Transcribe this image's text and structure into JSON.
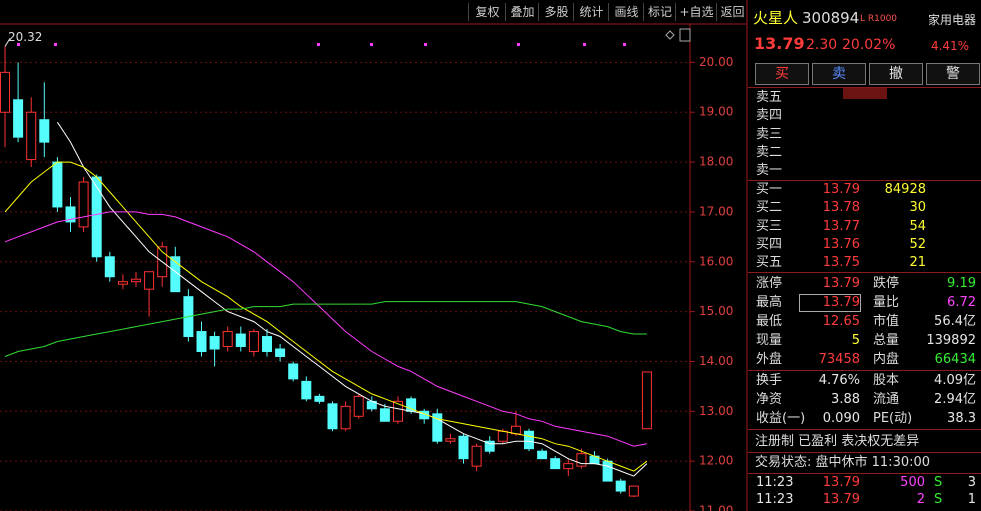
{
  "toolbar": [
    "复权",
    "叠加",
    "多股",
    "统计",
    "画线",
    "标记",
    "+自选",
    "返回"
  ],
  "chart_data": {
    "type": "candlestick",
    "ylim": [
      11,
      20.75
    ],
    "yticks": [
      {
        "value": 11,
        "label": "11.00"
      },
      {
        "value": 12,
        "label": "12.00"
      },
      {
        "value": 13,
        "label": "13.00"
      },
      {
        "value": 14,
        "label": "14.00"
      },
      {
        "value": 15,
        "label": "15.00"
      },
      {
        "value": 16,
        "label": "16.00"
      },
      {
        "value": 17,
        "label": "17.00"
      },
      {
        "value": 18,
        "label": "18.00"
      },
      {
        "value": 19,
        "label": "19.00"
      },
      {
        "value": 20,
        "label": "20.00"
      }
    ],
    "grid": true,
    "up_color": "#ff3232",
    "down_color": "#54fcfc",
    "open": [
      19.0,
      19.25,
      18.05,
      18.85,
      18.0,
      17.1,
      16.7,
      17.7,
      16.1,
      15.55,
      15.6,
      15.45,
      15.7,
      16.1,
      15.3,
      14.6,
      14.5,
      14.3,
      14.55,
      14.2,
      14.5,
      14.25,
      13.95,
      13.6,
      13.3,
      13.15,
      12.65,
      12.9,
      13.2,
      13.05,
      12.8,
      13.25,
      13.0,
      12.95,
      12.4,
      12.5,
      11.9,
      12.4,
      12.4,
      12.55,
      12.6,
      12.2,
      12.05,
      11.85,
      11.9,
      12.1,
      12.0,
      11.6,
      11.3,
      12.65
    ],
    "high": [
      20.32,
      20.0,
      19.3,
      19.6,
      18.1,
      17.3,
      17.7,
      17.75,
      16.2,
      15.75,
      15.8,
      15.8,
      16.4,
      16.3,
      15.45,
      14.8,
      14.6,
      14.7,
      14.7,
      14.65,
      14.65,
      14.35,
      14.0,
      13.7,
      13.35,
      13.2,
      13.2,
      13.35,
      13.3,
      13.15,
      13.3,
      13.3,
      13.05,
      13.05,
      12.55,
      12.55,
      12.35,
      12.5,
      12.65,
      13.0,
      12.65,
      12.25,
      12.1,
      12.05,
      12.25,
      12.2,
      12.05,
      11.65,
      11.5,
      13.79
    ],
    "low": [
      18.3,
      18.4,
      17.9,
      18.1,
      17.0,
      16.6,
      16.6,
      16.0,
      15.6,
      15.45,
      15.5,
      14.9,
      15.5,
      15.4,
      14.4,
      14.1,
      13.9,
      14.2,
      14.2,
      14.1,
      14.1,
      14.0,
      13.6,
      13.2,
      13.15,
      12.6,
      12.6,
      12.85,
      13.0,
      12.8,
      12.75,
      12.95,
      12.75,
      12.35,
      12.35,
      11.95,
      11.8,
      12.15,
      12.35,
      12.5,
      12.2,
      12.05,
      11.85,
      11.7,
      11.85,
      11.95,
      11.6,
      11.35,
      11.28,
      12.65
    ],
    "close": [
      19.8,
      18.5,
      19.0,
      18.4,
      17.1,
      16.8,
      17.6,
      16.1,
      15.7,
      15.6,
      15.65,
      15.8,
      16.3,
      15.4,
      14.5,
      14.2,
      14.25,
      14.6,
      14.3,
      14.6,
      14.2,
      14.1,
      13.65,
      13.25,
      13.2,
      12.65,
      13.1,
      13.3,
      13.05,
      12.8,
      13.2,
      13.0,
      12.85,
      12.4,
      12.45,
      12.05,
      12.3,
      12.2,
      12.6,
      12.7,
      12.25,
      12.05,
      11.85,
      11.95,
      12.15,
      11.95,
      11.6,
      11.4,
      11.5,
      13.79
    ],
    "series": [
      {
        "color": "#ffffff",
        "values": [
          null,
          null,
          null,
          null,
          18.8,
          18.4,
          17.9,
          17.5,
          17.1,
          16.8,
          16.5,
          16.2,
          16.0,
          15.8,
          15.6,
          15.4,
          15.2,
          15.0,
          14.9,
          14.8,
          14.6,
          14.5,
          14.3,
          14.1,
          13.9,
          13.7,
          13.5,
          13.35,
          13.2,
          13.1,
          13.05,
          13.0,
          12.95,
          12.85,
          12.7,
          12.55,
          12.45,
          12.35,
          12.35,
          12.4,
          12.4,
          12.35,
          12.2,
          12.05,
          11.95,
          11.95,
          11.9,
          11.8,
          11.7,
          11.95
        ]
      },
      {
        "color": "#ffff00",
        "values": [
          17.0,
          17.3,
          17.6,
          17.8,
          18.0,
          18.0,
          17.9,
          17.7,
          17.4,
          17.1,
          16.8,
          16.5,
          16.2,
          16.0,
          15.8,
          15.6,
          15.45,
          15.3,
          15.1,
          14.95,
          14.8,
          14.6,
          14.4,
          14.2,
          14.0,
          13.8,
          13.65,
          13.5,
          13.35,
          13.25,
          13.15,
          13.05,
          12.95,
          12.85,
          12.8,
          12.75,
          12.7,
          12.65,
          12.6,
          12.55,
          12.5,
          12.45,
          12.35,
          12.3,
          12.2,
          12.1,
          12.0,
          11.9,
          11.8,
          12.0
        ]
      },
      {
        "color": "#ff3cff",
        "values": [
          16.4,
          16.5,
          16.6,
          16.7,
          16.8,
          16.85,
          16.9,
          16.95,
          17.0,
          17.0,
          17.0,
          16.95,
          16.95,
          16.9,
          16.8,
          16.7,
          16.6,
          16.5,
          16.35,
          16.2,
          16.0,
          15.8,
          15.6,
          15.35,
          15.1,
          14.85,
          14.6,
          14.4,
          14.2,
          14.05,
          13.9,
          13.8,
          13.65,
          13.5,
          13.4,
          13.3,
          13.2,
          13.1,
          13.0,
          12.95,
          12.85,
          12.8,
          12.7,
          12.65,
          12.6,
          12.55,
          12.5,
          12.4,
          12.3,
          12.35
        ]
      },
      {
        "color": "#33dd33",
        "values": [
          14.1,
          14.2,
          14.25,
          14.3,
          14.4,
          14.45,
          14.5,
          14.55,
          14.6,
          14.65,
          14.7,
          14.75,
          14.8,
          14.85,
          14.9,
          14.95,
          15.0,
          15.05,
          15.05,
          15.1,
          15.1,
          15.1,
          15.15,
          15.15,
          15.15,
          15.15,
          15.15,
          15.15,
          15.15,
          15.2,
          15.2,
          15.2,
          15.2,
          15.2,
          15.2,
          15.2,
          15.2,
          15.2,
          15.2,
          15.2,
          15.15,
          15.1,
          15.0,
          14.9,
          14.8,
          14.75,
          14.7,
          14.6,
          14.55,
          14.55
        ]
      }
    ]
  },
  "panel": {
    "stock": {
      "name": "火星人",
      "code": "300894",
      "tag": "L R1000",
      "sector": "家用电器",
      "price": "13.79",
      "change": "2.30",
      "pct": "20.02%",
      "sector_pct": "4.41%"
    },
    "actions": [
      "买",
      "卖",
      "撤",
      "警"
    ],
    "asks": [
      "卖五",
      "卖四",
      "卖三",
      "卖二",
      "卖一"
    ],
    "bids": [
      [
        "买一",
        "13.79",
        "84928"
      ],
      [
        "买二",
        "13.78",
        "30"
      ],
      [
        "买三",
        "13.77",
        "54"
      ],
      [
        "买四",
        "13.76",
        "52"
      ],
      [
        "买五",
        "13.75",
        "21"
      ]
    ],
    "stats": [
      [
        "涨停",
        "13.79",
        "跌停",
        "9.19"
      ],
      [
        "最高",
        "13.79",
        "量比",
        "6.72"
      ],
      [
        "最低",
        "12.65",
        "市值",
        "56.4亿"
      ],
      [
        "现量",
        "5",
        "总量",
        "139892"
      ],
      [
        "外盘",
        "73458",
        "内盘",
        "66434"
      ],
      [
        "换手",
        "4.76%",
        "股本",
        "4.09亿"
      ],
      [
        "净资",
        "3.88",
        "流通",
        "2.94亿"
      ],
      [
        "收益(一)",
        "0.090",
        "PE(动)",
        "38.3"
      ]
    ],
    "notes": "注册制 已盈利 表决权无差异",
    "status": "交易状态: 盘中休市 11:30:00",
    "trades": [
      [
        "11:23",
        "13.79",
        "500",
        "S",
        "3"
      ],
      [
        "11:23",
        "13.79",
        "2",
        "S",
        "1"
      ]
    ]
  }
}
